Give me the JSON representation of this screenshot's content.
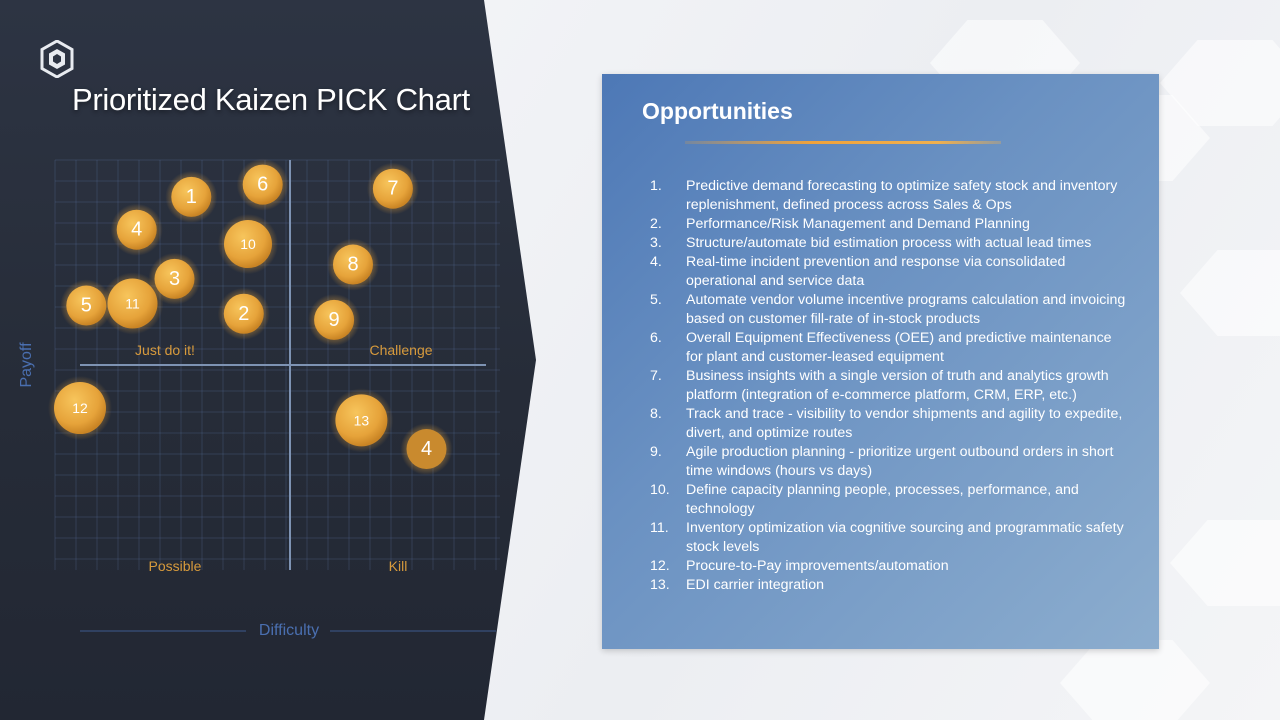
{
  "slide": {
    "title": "Prioritized Kaizen PICK Chart"
  },
  "colors": {
    "dark_panel": "#262c38",
    "bubble": "#e6a33a",
    "quadrant_label": "#d79a3c",
    "axis_label": "#4a6fb0",
    "card": "#6a91c2",
    "accent_rule": "#f0a23a"
  },
  "chart_data": {
    "type": "scatter",
    "title": "Prioritized Kaizen PICK Chart",
    "xlabel": "Difficulty",
    "ylabel": "Payoff",
    "quadrants": {
      "top_left": "Just do it!",
      "top_right": "Challenge",
      "bottom_left": "Possible",
      "bottom_right": "Kill"
    },
    "grid": true,
    "points": [
      {
        "label": "1",
        "x": -0.47,
        "y": 0.82,
        "size": 1.0
      },
      {
        "label": "6",
        "x": -0.13,
        "y": 0.88,
        "size": 1.0
      },
      {
        "label": "7",
        "x": 0.49,
        "y": 0.86,
        "size": 1.0
      },
      {
        "label": "4",
        "x": -0.73,
        "y": 0.66,
        "size": 1.0
      },
      {
        "label": "10",
        "x": -0.2,
        "y": 0.59,
        "size": 1.2
      },
      {
        "label": "8",
        "x": 0.3,
        "y": 0.49,
        "size": 1.0
      },
      {
        "label": "3",
        "x": -0.55,
        "y": 0.42,
        "size": 1.0
      },
      {
        "label": "5",
        "x": -0.97,
        "y": 0.29,
        "size": 1.0
      },
      {
        "label": "11",
        "x": -0.75,
        "y": 0.3,
        "size": 1.25
      },
      {
        "label": "2",
        "x": -0.22,
        "y": 0.25,
        "size": 1.0
      },
      {
        "label": "9",
        "x": 0.21,
        "y": 0.22,
        "size": 1.0
      },
      {
        "label": "12",
        "x": -1.0,
        "y": -0.21,
        "size": 1.3
      },
      {
        "label": "13",
        "x": 0.34,
        "y": -0.27,
        "size": 1.3
      },
      {
        "label": "4",
        "x": 0.65,
        "y": -0.41,
        "size": 1.0
      }
    ]
  },
  "opportunities": {
    "title": "Opportunities",
    "items": [
      {
        "num": "1.",
        "text": "Predictive demand forecasting to optimize safety stock and inventory replenishment, defined process across Sales & Ops"
      },
      {
        "num": "2.",
        "text": "Performance/Risk Management and Demand Planning"
      },
      {
        "num": "3.",
        "text": "Structure/automate bid estimation process with actual lead times"
      },
      {
        "num": "4.",
        "text": "Real-time incident prevention and response via consolidated operational and service data"
      },
      {
        "num": "5.",
        "text": "Automate vendor volume incentive programs calculation and invoicing based on customer fill-rate of in-stock products"
      },
      {
        "num": "6.",
        "text": "Overall Equipment Effectiveness (OEE) and predictive maintenance for plant and customer-leased equipment"
      },
      {
        "num": "7.",
        "text": "Business insights with a single version of truth and analytics growth platform (integration of e-commerce platform, CRM, ERP, etc.)"
      },
      {
        "num": "8.",
        "text": "Track and trace - visibility to vendor shipments and agility to expedite, divert, and optimize routes"
      },
      {
        "num": "9.",
        "text": "Agile production planning - prioritize urgent outbound orders in short time windows (hours vs days)"
      },
      {
        "num": "10.",
        "text": "Define capacity planning people, processes, performance, and technology"
      },
      {
        "num": "11.",
        "text": "Inventory optimization via cognitive sourcing and programmatic safety stock levels"
      },
      {
        "num": "12.",
        "text": "Procure-to-Pay improvements/automation"
      },
      {
        "num": "13.",
        "text": "EDI carrier integration"
      }
    ]
  }
}
